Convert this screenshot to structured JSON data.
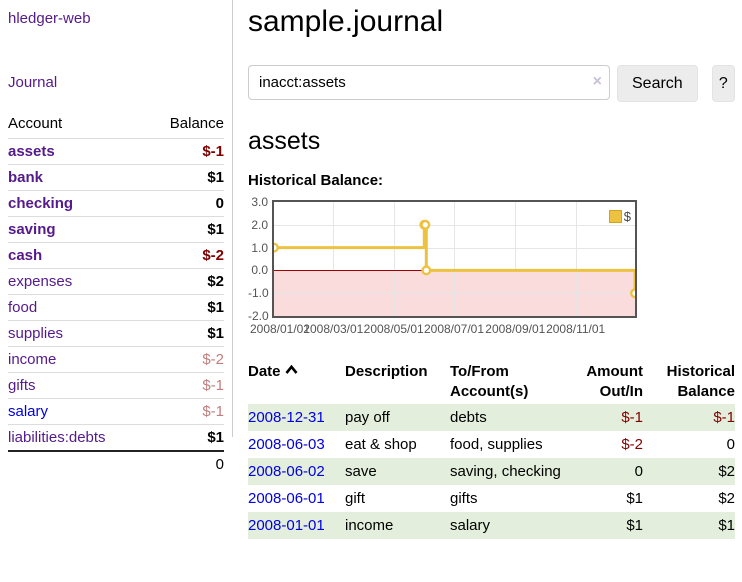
{
  "colors": {
    "link_purple": "#551a8b",
    "link_blue": "#0000e0",
    "negative_red": "#800000",
    "dim_negative": "#bf7f7f",
    "row_stripe_green": "#e3efdc",
    "chart_line_gold": "#edc240",
    "chart_negative_bg": "#fbdcdc",
    "chart_zero_line": "#a40000",
    "chart_border": "#545454",
    "button_bg": "#ececec"
  },
  "sidebar": {
    "brand": "hledger-web",
    "journal_link": "Journal",
    "accounts_table": {
      "headers": [
        "Account",
        "Balance"
      ],
      "rows": [
        {
          "account": "assets",
          "balance": "$-1",
          "indent": 1,
          "bold": true,
          "amount_class": "neg"
        },
        {
          "account": "bank",
          "balance": "$1",
          "indent": 2,
          "bold": true,
          "amount_class": ""
        },
        {
          "account": "checking",
          "balance": "0",
          "indent": 3,
          "bold": true,
          "amount_class": ""
        },
        {
          "account": "saving",
          "balance": "$1",
          "indent": 3,
          "bold": true,
          "amount_class": ""
        },
        {
          "account": "cash",
          "balance": "$-2",
          "indent": 2,
          "bold": true,
          "amount_class": "neg"
        },
        {
          "account": "expenses",
          "balance": "$2",
          "indent": 1,
          "bold": false,
          "amount_class": ""
        },
        {
          "account": "food",
          "balance": "$1",
          "indent": 2,
          "bold": false,
          "amount_class": ""
        },
        {
          "account": "supplies",
          "balance": "$1",
          "indent": 2,
          "bold": false,
          "amount_class": ""
        },
        {
          "account": "income",
          "balance": "$-2",
          "indent": 1,
          "bold": false,
          "amount_class": "dim"
        },
        {
          "account": "gifts",
          "balance": "$-1",
          "indent": 2,
          "bold": false,
          "amount_class": "dim"
        },
        {
          "account": "salary",
          "balance": "$-1",
          "indent": 2,
          "bold": false,
          "amount_class": "dim",
          "link": "blue"
        },
        {
          "account": "liabilities:debts",
          "balance": "$1",
          "indent": 1,
          "bold": false,
          "amount_class": ""
        }
      ],
      "total": "0"
    }
  },
  "header": {
    "title": "sample.journal"
  },
  "search": {
    "value": "inacct:assets",
    "clear_icon": "×",
    "button_label": "Search",
    "help_label": "?"
  },
  "account_page": {
    "title": "assets",
    "chart_label": "Historical Balance:"
  },
  "chart_data": {
    "type": "line",
    "title": "Historical Balance",
    "step": true,
    "series": [
      {
        "name": "$",
        "color": "#edc240",
        "points": [
          [
            "2008-01-01",
            1
          ],
          [
            "2008-06-01",
            2
          ],
          [
            "2008-06-02",
            2
          ],
          [
            "2008-06-03",
            0
          ],
          [
            "2008-12-31",
            -1
          ]
        ]
      }
    ],
    "ylim": [
      -2,
      3
    ],
    "yticks": [
      "3.0",
      "2.0",
      "1.0",
      "0.0",
      "-1.0",
      "-2.0"
    ],
    "xticks": [
      "2008/01/01",
      "2008/03/01",
      "2008/05/01",
      "2008/07/01",
      "2008/09/01",
      "2008/11/01"
    ],
    "x_range": [
      "2008-01-01",
      "2008-12-31"
    ],
    "grid": true,
    "legend_position": "top-right",
    "negative_region": true,
    "zero_line": true
  },
  "register_table": {
    "headers": [
      {
        "key": "date",
        "label": "Date",
        "sort": "asc"
      },
      {
        "key": "description",
        "label": "Description"
      },
      {
        "key": "accounts",
        "label": "To/From Account(s)"
      },
      {
        "key": "amount",
        "label": "Amount Out/In",
        "align": "right"
      },
      {
        "key": "balance",
        "label": "Historical Balance",
        "align": "right"
      }
    ],
    "rows": [
      {
        "date": "2008-12-31",
        "description": "pay off",
        "accounts": "debts",
        "amount": "$-1",
        "amount_class": "neg",
        "balance": "$-1",
        "balance_class": "neg"
      },
      {
        "date": "2008-06-03",
        "description": "eat & shop",
        "accounts": "food, supplies",
        "amount": "$-2",
        "amount_class": "neg",
        "balance": "0",
        "balance_class": ""
      },
      {
        "date": "2008-06-02",
        "description": "save",
        "accounts": "saving, checking",
        "amount": "0",
        "amount_class": "",
        "balance": "$2",
        "balance_class": ""
      },
      {
        "date": "2008-06-01",
        "description": "gift",
        "accounts": "gifts",
        "amount": "$1",
        "amount_class": "",
        "balance": "$2",
        "balance_class": ""
      },
      {
        "date": "2008-01-01",
        "description": "income",
        "accounts": "salary",
        "amount": "$1",
        "amount_class": "",
        "balance": "$1",
        "balance_class": ""
      }
    ]
  }
}
